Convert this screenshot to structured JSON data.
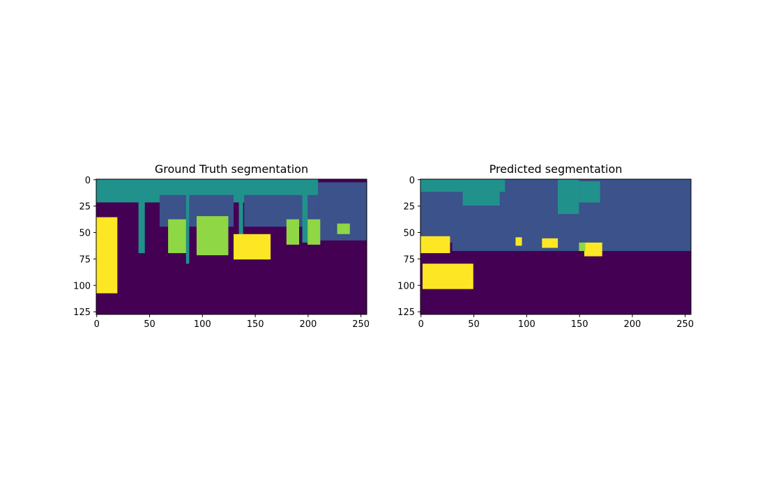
{
  "chart_data": [
    {
      "type": "heatmap",
      "title": "Ground Truth segmentation",
      "xlim": [
        0,
        256
      ],
      "ylim": [
        128,
        0
      ],
      "xticks": [
        0,
        50,
        100,
        150,
        200,
        250
      ],
      "yticks": [
        0,
        25,
        50,
        75,
        100,
        125
      ],
      "colormap": "viridis",
      "classes": {
        "0": "#440154",
        "1": "#3b528b",
        "2": "#21918c",
        "3": "#8fd744",
        "4": "#fde725"
      },
      "regions": [
        {
          "class": 2,
          "x": [
            0,
            210
          ],
          "y": [
            0,
            22
          ]
        },
        {
          "class": 1,
          "x": [
            210,
            256
          ],
          "y": [
            3,
            58
          ]
        },
        {
          "class": 1,
          "x": [
            60,
            130
          ],
          "y": [
            15,
            45
          ]
        },
        {
          "class": 1,
          "x": [
            140,
            210
          ],
          "y": [
            15,
            45
          ]
        },
        {
          "class": 2,
          "x": [
            40,
            46
          ],
          "y": [
            0,
            70
          ]
        },
        {
          "class": 2,
          "x": [
            85,
            88
          ],
          "y": [
            0,
            80
          ]
        },
        {
          "class": 2,
          "x": [
            135,
            139
          ],
          "y": [
            0,
            60
          ]
        },
        {
          "class": 2,
          "x": [
            195,
            200
          ],
          "y": [
            10,
            60
          ]
        },
        {
          "class": 4,
          "x": [
            0,
            20
          ],
          "y": [
            36,
            108
          ]
        },
        {
          "class": 4,
          "x": [
            130,
            165
          ],
          "y": [
            52,
            76
          ]
        },
        {
          "class": 3,
          "x": [
            95,
            125
          ],
          "y": [
            35,
            72
          ]
        },
        {
          "class": 3,
          "x": [
            68,
            85
          ],
          "y": [
            38,
            70
          ]
        },
        {
          "class": 3,
          "x": [
            180,
            192
          ],
          "y": [
            38,
            62
          ]
        },
        {
          "class": 3,
          "x": [
            200,
            212
          ],
          "y": [
            38,
            62
          ]
        },
        {
          "class": 3,
          "x": [
            228,
            240
          ],
          "y": [
            42,
            52
          ]
        }
      ]
    },
    {
      "type": "heatmap",
      "title": "Predicted segmentation",
      "xlim": [
        0,
        256
      ],
      "ylim": [
        128,
        0
      ],
      "xticks": [
        0,
        50,
        100,
        150,
        200,
        250
      ],
      "yticks": [
        0,
        25,
        50,
        75,
        100,
        125
      ],
      "colormap": "viridis",
      "classes": {
        "0": "#440154",
        "1": "#3b528b",
        "2": "#21918c",
        "3": "#8fd744",
        "4": "#fde725"
      },
      "regions": [
        {
          "class": 1,
          "x": [
            0,
            256
          ],
          "y": [
            0,
            68
          ]
        },
        {
          "class": 2,
          "x": [
            0,
            80
          ],
          "y": [
            0,
            12
          ]
        },
        {
          "class": 2,
          "x": [
            40,
            75
          ],
          "y": [
            0,
            25
          ]
        },
        {
          "class": 2,
          "x": [
            130,
            150
          ],
          "y": [
            0,
            33
          ]
        },
        {
          "class": 2,
          "x": [
            150,
            170
          ],
          "y": [
            2,
            22
          ]
        },
        {
          "class": 0,
          "x": [
            0,
            30
          ],
          "y": [
            60,
            128
          ]
        },
        {
          "class": 4,
          "x": [
            0,
            28
          ],
          "y": [
            54,
            70
          ]
        },
        {
          "class": 4,
          "x": [
            2,
            50
          ],
          "y": [
            80,
            104
          ]
        },
        {
          "class": 4,
          "x": [
            90,
            96
          ],
          "y": [
            55,
            63
          ]
        },
        {
          "class": 4,
          "x": [
            115,
            130
          ],
          "y": [
            56,
            65
          ]
        },
        {
          "class": 4,
          "x": [
            155,
            172
          ],
          "y": [
            60,
            73
          ]
        },
        {
          "class": 3,
          "x": [
            150,
            156
          ],
          "y": [
            60,
            68
          ]
        }
      ]
    }
  ]
}
